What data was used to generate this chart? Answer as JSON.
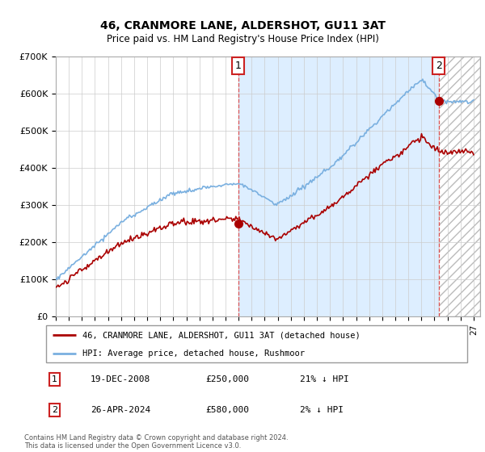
{
  "title": "46, CRANMORE LANE, ALDERSHOT, GU11 3AT",
  "subtitle": "Price paid vs. HM Land Registry's House Price Index (HPI)",
  "ylim": [
    0,
    700000
  ],
  "xlim_start": 1995.0,
  "xlim_end": 2027.5,
  "yticks": [
    0,
    100000,
    200000,
    300000,
    400000,
    500000,
    600000,
    700000
  ],
  "ytick_labels": [
    "£0",
    "£100K",
    "£200K",
    "£300K",
    "£400K",
    "£500K",
    "£600K",
    "£700K"
  ],
  "hpi_color": "#7ab0e0",
  "price_color": "#aa0000",
  "shaded_bg_color": "#ddeeff",
  "transaction1_x": 2008.97,
  "transaction1_y": 250000,
  "transaction1_label": "1",
  "transaction2_x": 2024.33,
  "transaction2_y": 580000,
  "transaction2_label": "2",
  "legend_price_label": "46, CRANMORE LANE, ALDERSHOT, GU11 3AT (detached house)",
  "legend_hpi_label": "HPI: Average price, detached house, Rushmoor",
  "table_row1": [
    "1",
    "19-DEC-2008",
    "£250,000",
    "21% ↓ HPI"
  ],
  "table_row2": [
    "2",
    "26-APR-2024",
    "£580,000",
    "2% ↓ HPI"
  ],
  "footnote": "Contains HM Land Registry data © Crown copyright and database right 2024.\nThis data is licensed under the Open Government Licence v3.0.",
  "background_color": "#ffffff",
  "grid_color": "#cccccc"
}
